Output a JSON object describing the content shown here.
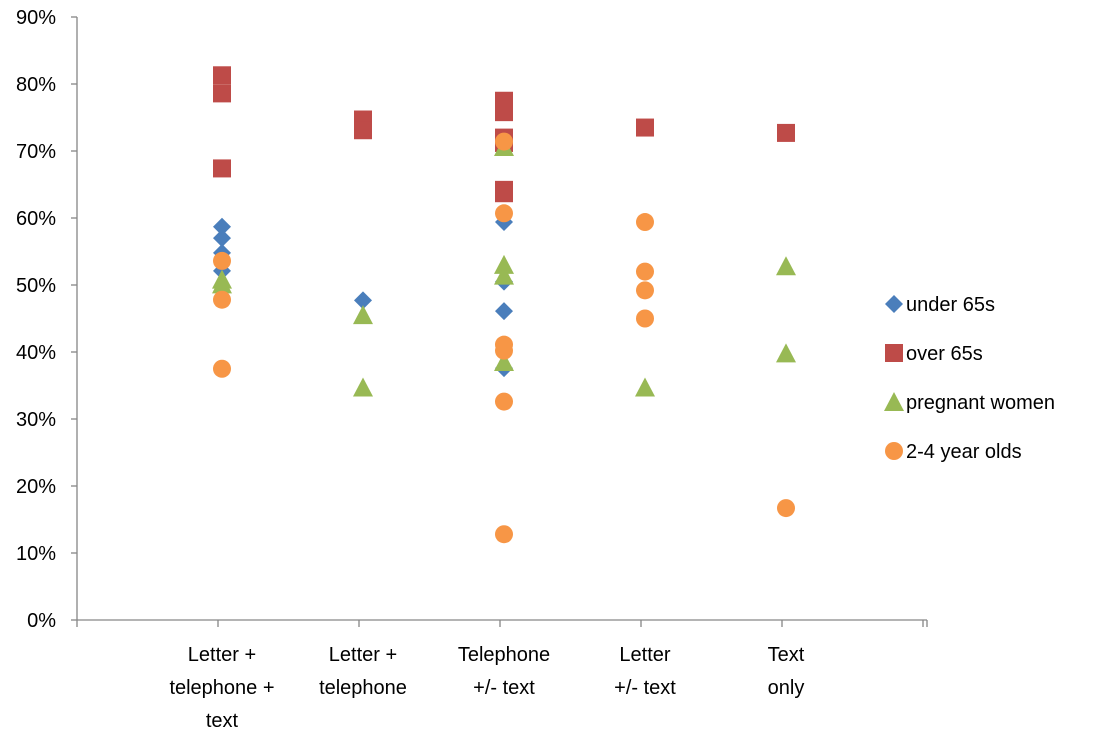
{
  "chart_data": {
    "type": "scatter",
    "title": "",
    "xlabel": "",
    "ylabel": "",
    "ylim": [
      0,
      0.9
    ],
    "y_ticks": [
      "0%",
      "10%",
      "20%",
      "30%",
      "40%",
      "50%",
      "60%",
      "70%",
      "80%",
      "90%"
    ],
    "y_tick_values": [
      0,
      0.1,
      0.2,
      0.3,
      0.4,
      0.5,
      0.6,
      0.7,
      0.8,
      0.9
    ],
    "grid": false,
    "legend_position": "right",
    "categories": [
      [
        "Letter +",
        "telephone +",
        "text"
      ],
      [
        "Letter +",
        "telephone"
      ],
      [
        "Telephone",
        "+/- text"
      ],
      [
        "Letter",
        "+/- text"
      ],
      [
        "Text",
        "only"
      ]
    ],
    "series": [
      {
        "name": "under 65s",
        "marker": "diamond",
        "color": "#4a7ebb",
        "points": [
          [
            0,
            0.587
          ],
          [
            0,
            0.57
          ],
          [
            0,
            0.548
          ],
          [
            0,
            0.521
          ],
          [
            0,
            0.497
          ],
          [
            1,
            0.477
          ],
          [
            2,
            0.594
          ],
          [
            2,
            0.505
          ],
          [
            2,
            0.461
          ],
          [
            2,
            0.376
          ]
        ]
      },
      {
        "name": "over 65s",
        "marker": "square",
        "color": "#be4b48",
        "points": [
          [
            0,
            0.813
          ],
          [
            0,
            0.786
          ],
          [
            0,
            0.674
          ],
          [
            1,
            0.747
          ],
          [
            1,
            0.731
          ],
          [
            2,
            0.775
          ],
          [
            2,
            0.758
          ],
          [
            2,
            0.72
          ],
          [
            2,
            0.712
          ],
          [
            2,
            0.642
          ],
          [
            2,
            0.637
          ],
          [
            3,
            0.735
          ],
          [
            4,
            0.727
          ]
        ]
      },
      {
        "name": "pregnant women",
        "marker": "triangle",
        "color": "#98b954",
        "points": [
          [
            0,
            0.508
          ],
          [
            0,
            0.501
          ],
          [
            1,
            0.455
          ],
          [
            1,
            0.347
          ],
          [
            2,
            0.706
          ],
          [
            2,
            0.53
          ],
          [
            2,
            0.514
          ],
          [
            2,
            0.385
          ],
          [
            3,
            0.347
          ],
          [
            4,
            0.528
          ],
          [
            4,
            0.398
          ]
        ]
      },
      {
        "name": "2-4 year olds",
        "marker": "circle",
        "color": "#f79646",
        "points": [
          [
            0,
            0.536
          ],
          [
            0,
            0.478
          ],
          [
            0,
            0.375
          ],
          [
            2,
            0.714
          ],
          [
            2,
            0.607
          ],
          [
            2,
            0.411
          ],
          [
            2,
            0.402
          ],
          [
            2,
            0.326
          ],
          [
            2,
            0.128
          ],
          [
            3,
            0.594
          ],
          [
            3,
            0.52
          ],
          [
            3,
            0.492
          ],
          [
            3,
            0.45
          ],
          [
            4,
            0.167
          ]
        ]
      }
    ]
  }
}
